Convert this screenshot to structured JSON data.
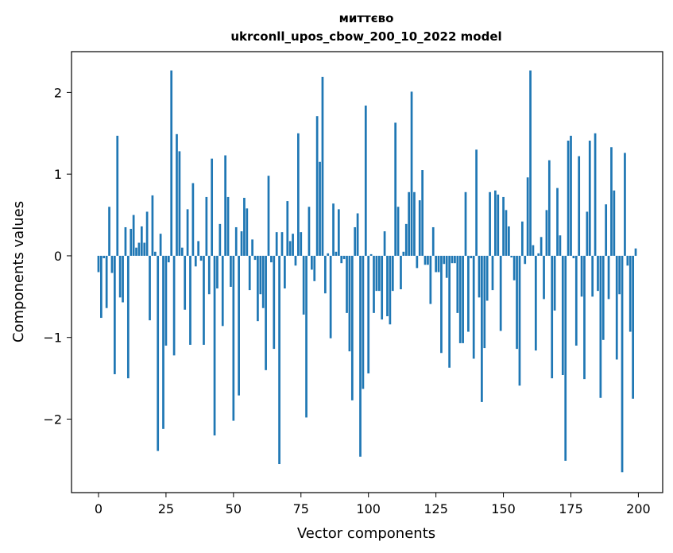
{
  "chart_data": {
    "type": "bar",
    "title_line1": "миттєво",
    "title_line2": "ukrconll_upos_cbow_200_10_2022 model",
    "xlabel": "Vector components",
    "ylabel": "Components values",
    "xlim": [
      -10,
      209
    ],
    "ylim": [
      -2.9,
      2.5
    ],
    "xticks": [
      0,
      25,
      50,
      75,
      100,
      125,
      150,
      175,
      200
    ],
    "yticks": [
      -2,
      -1,
      0,
      1,
      2
    ],
    "ytick_labels": [
      "−2",
      "−1",
      "0",
      "1",
      "2"
    ],
    "grid": false,
    "bar_color": "#1f77b4",
    "x": [
      0,
      1,
      2,
      3,
      4,
      5,
      6,
      7,
      8,
      9,
      10,
      11,
      12,
      13,
      14,
      15,
      16,
      17,
      18,
      19,
      20,
      21,
      22,
      23,
      24,
      25,
      26,
      27,
      28,
      29,
      30,
      31,
      32,
      33,
      34,
      35,
      36,
      37,
      38,
      39,
      40,
      41,
      42,
      43,
      44,
      45,
      46,
      47,
      48,
      49,
      50,
      51,
      52,
      53,
      54,
      55,
      56,
      57,
      58,
      59,
      60,
      61,
      62,
      63,
      64,
      65,
      66,
      67,
      68,
      69,
      70,
      71,
      72,
      73,
      74,
      75,
      76,
      77,
      78,
      79,
      80,
      81,
      82,
      83,
      84,
      85,
      86,
      87,
      88,
      89,
      90,
      91,
      92,
      93,
      94,
      95,
      96,
      97,
      98,
      99,
      100,
      101,
      102,
      103,
      104,
      105,
      106,
      107,
      108,
      109,
      110,
      111,
      112,
      113,
      114,
      115,
      116,
      117,
      118,
      119,
      120,
      121,
      122,
      123,
      124,
      125,
      126,
      127,
      128,
      129,
      130,
      131,
      132,
      133,
      134,
      135,
      136,
      137,
      138,
      139,
      140,
      141,
      142,
      143,
      144,
      145,
      146,
      147,
      148,
      149,
      150,
      151,
      152,
      153,
      154,
      155,
      156,
      157,
      158,
      159,
      160,
      161,
      162,
      163,
      164,
      165,
      166,
      167,
      168,
      169,
      170,
      171,
      172,
      173,
      174,
      175,
      176,
      177,
      178,
      179,
      180,
      181,
      182,
      183,
      184,
      185,
      186,
      187,
      188,
      189,
      190,
      191,
      192,
      193,
      194,
      195,
      196,
      197,
      198,
      199
    ],
    "values": [
      -0.2,
      -0.76,
      -0.03,
      -0.64,
      0.6,
      -0.21,
      -1.45,
      1.47,
      -0.51,
      -0.57,
      0.35,
      -1.5,
      0.33,
      0.5,
      0.1,
      0.16,
      0.36,
      0.16,
      0.54,
      -0.79,
      0.74,
      0.05,
      -2.39,
      0.27,
      -2.12,
      -1.1,
      -0.08,
      2.27,
      -1.22,
      1.49,
      1.28,
      0.1,
      -0.66,
      0.57,
      -1.09,
      0.89,
      -0.13,
      0.18,
      -0.06,
      -1.09,
      0.72,
      -0.47,
      1.19,
      -2.2,
      -0.4,
      0.39,
      -0.86,
      1.23,
      0.72,
      -0.38,
      -2.02,
      0.35,
      -1.71,
      0.3,
      0.71,
      0.58,
      -0.42,
      0.2,
      -0.05,
      -0.8,
      -0.47,
      -0.64,
      -1.4,
      0.98,
      -0.08,
      -1.14,
      0.29,
      -2.55,
      0.29,
      -0.4,
      0.67,
      0.18,
      0.27,
      -0.12,
      1.5,
      0.29,
      -0.72,
      -1.98,
      0.6,
      -0.17,
      -0.31,
      1.71,
      1.15,
      2.19,
      -0.46,
      0.03,
      -1.01,
      0.64,
      0.05,
      0.57,
      -0.09,
      -0.04,
      -0.7,
      -1.17,
      -1.77,
      0.35,
      0.52,
      -2.46,
      -1.63,
      1.84,
      -1.44,
      0.02,
      -0.7,
      -0.43,
      -0.43,
      -0.78,
      0.3,
      -0.74,
      -0.84,
      -0.43,
      1.63,
      0.6,
      -0.41,
      0.05,
      0.39,
      0.78,
      2.01,
      0.78,
      -0.15,
      0.68,
      1.05,
      -0.11,
      -0.11,
      -0.59,
      0.35,
      -0.2,
      -0.2,
      -1.19,
      -0.1,
      -0.27,
      -1.37,
      -0.09,
      -0.09,
      -0.7,
      -1.07,
      -1.07,
      0.78,
      -0.93,
      -0.03,
      -1.26,
      1.3,
      -0.51,
      -1.79,
      -1.13,
      -0.55,
      0.78,
      -0.42,
      0.8,
      0.75,
      -0.92,
      0.72,
      0.56,
      0.36,
      -0.02,
      -0.3,
      -1.14,
      -1.59,
      0.42,
      -0.1,
      0.96,
      2.27,
      0.13,
      -1.16,
      0.03,
      0.23,
      -0.53,
      0.56,
      1.17,
      -1.5,
      -0.67,
      0.83,
      0.25,
      -1.46,
      -2.51,
      1.41,
      1.47,
      -0.03,
      -1.1,
      1.22,
      -0.5,
      -1.51,
      0.54,
      1.41,
      -0.5,
      1.5,
      -0.43,
      -1.74,
      -1.03,
      0.63,
      -0.53,
      1.33,
      0.8,
      -1.27,
      -0.47,
      -2.65,
      1.26,
      -0.12,
      -0.93,
      -1.75,
      0.09
    ]
  }
}
